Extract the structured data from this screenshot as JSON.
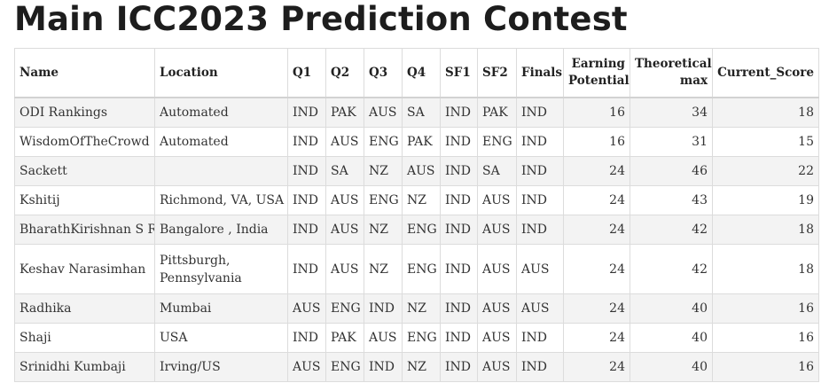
{
  "page": {
    "title": "Main ICC2023 Prediction Contest"
  },
  "table": {
    "headers": {
      "name": "Name",
      "location": "Location",
      "q1": "Q1",
      "q2": "Q2",
      "q3": "Q3",
      "q4": "Q4",
      "sf1": "SF1",
      "sf2": "SF2",
      "finals": "Finals",
      "earning_potential": "Earning Potential",
      "theoretical_max": "Theoretical max",
      "current_score": "Current_Score"
    },
    "rows": [
      {
        "name": "ODI Rankings",
        "location": "Automated",
        "q1": "IND",
        "q2": "PAK",
        "q3": "AUS",
        "q4": "SA",
        "sf1": "IND",
        "sf2": "PAK",
        "finals": "IND",
        "earning_potential": "16",
        "theoretical_max": "34",
        "current_score": "18"
      },
      {
        "name": "WisdomOfTheCrowd",
        "location": "Automated",
        "q1": "IND",
        "q2": "AUS",
        "q3": "ENG",
        "q4": "PAK",
        "sf1": "IND",
        "sf2": "ENG",
        "finals": "IND",
        "earning_potential": "16",
        "theoretical_max": "31",
        "current_score": "15"
      },
      {
        "name": "Sackett",
        "location": "",
        "q1": "IND",
        "q2": "SA",
        "q3": "NZ",
        "q4": "AUS",
        "sf1": "IND",
        "sf2": "SA",
        "finals": "IND",
        "earning_potential": "24",
        "theoretical_max": "46",
        "current_score": "22"
      },
      {
        "name": "Kshitij",
        "location": "Richmond, VA, USA",
        "q1": "IND",
        "q2": "AUS",
        "q3": "ENG",
        "q4": "NZ",
        "sf1": "IND",
        "sf2": "AUS",
        "finals": "IND",
        "earning_potential": "24",
        "theoretical_max": "43",
        "current_score": "19"
      },
      {
        "name": "BharathKirishnan S R",
        "location": "Bangalore , India",
        "q1": "IND",
        "q2": "AUS",
        "q3": "NZ",
        "q4": "ENG",
        "sf1": "IND",
        "sf2": "AUS",
        "finals": "IND",
        "earning_potential": "24",
        "theoretical_max": "42",
        "current_score": "18"
      },
      {
        "name": "Keshav Narasimhan",
        "location": "Pittsburgh, Pennsylvania",
        "q1": "IND",
        "q2": "AUS",
        "q3": "NZ",
        "q4": "ENG",
        "sf1": "IND",
        "sf2": "AUS",
        "finals": "AUS",
        "earning_potential": "24",
        "theoretical_max": "42",
        "current_score": "18"
      },
      {
        "name": "Radhika",
        "location": "Mumbai",
        "q1": "AUS",
        "q2": "ENG",
        "q3": "IND",
        "q4": "NZ",
        "sf1": "IND",
        "sf2": "AUS",
        "finals": "AUS",
        "earning_potential": "24",
        "theoretical_max": "40",
        "current_score": "16"
      },
      {
        "name": "Shaji",
        "location": "USA",
        "q1": "IND",
        "q2": "PAK",
        "q3": "AUS",
        "q4": "ENG",
        "sf1": "IND",
        "sf2": "AUS",
        "finals": "IND",
        "earning_potential": "24",
        "theoretical_max": "40",
        "current_score": "16"
      },
      {
        "name": "Srinidhi Kumbaji",
        "location": "Irving/US",
        "q1": "AUS",
        "q2": "ENG",
        "q3": "IND",
        "q4": "NZ",
        "sf1": "IND",
        "sf2": "AUS",
        "finals": "IND",
        "earning_potential": "24",
        "theoretical_max": "40",
        "current_score": "16"
      }
    ]
  }
}
